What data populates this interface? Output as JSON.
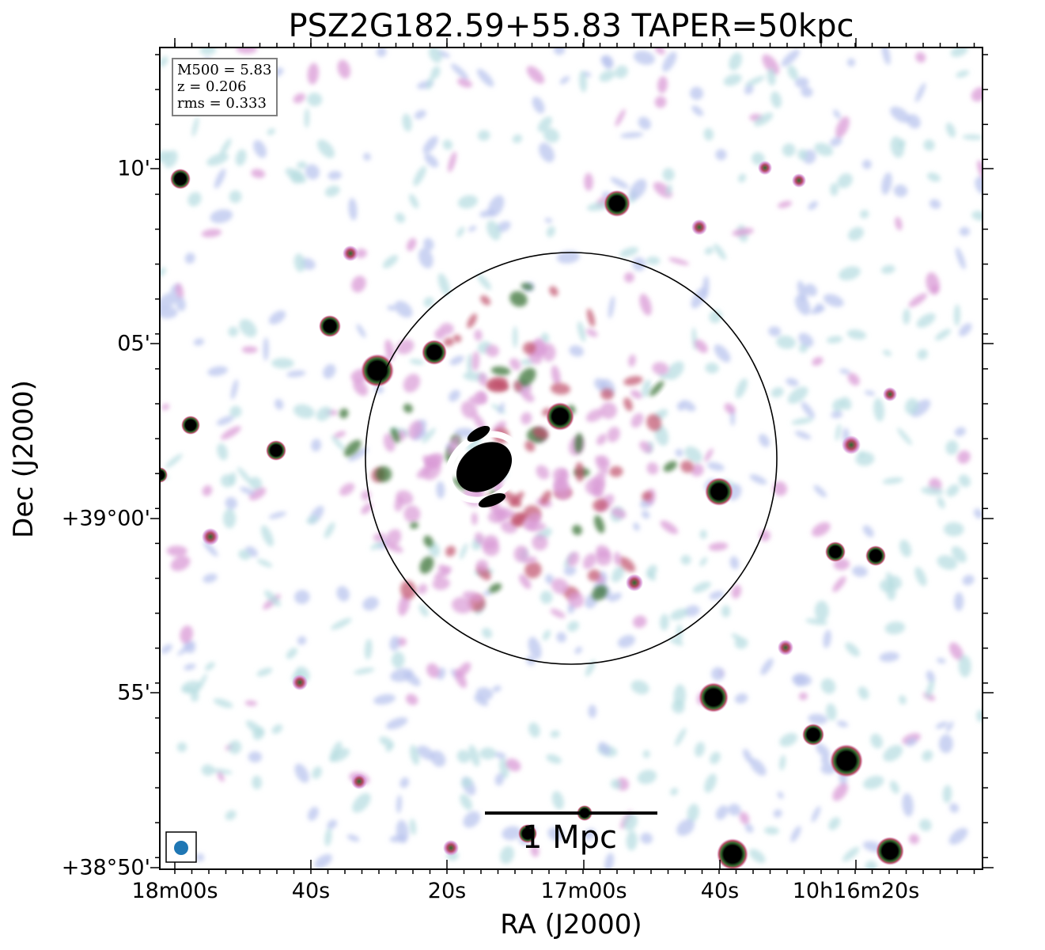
{
  "title": "PSZ2G182.59+55.83 TAPER=50kpc",
  "axes": {
    "xlabel": "RA (J2000)",
    "ylabel": "Dec (J2000)",
    "xticks": [
      "18m00s",
      "40s",
      "20s",
      "17m00s",
      "40s",
      "10h16m20s"
    ],
    "yticks": [
      "10'",
      "05'",
      "+39°00'",
      "55'",
      "+38°50'"
    ]
  },
  "info": {
    "line1": "M500 = 5.83",
    "line2": "z = 0.206",
    "line3": "rms = 0.333"
  },
  "scalebar": {
    "label": "1 Mpc"
  },
  "colors": {
    "background": "#ffffff",
    "noise_light": "#b8dde2",
    "noise_blue": "#b9c4ee",
    "emission_pink": "#d99ad6",
    "emission_red": "#c0506a",
    "emission_green": "#2f6a2c",
    "source_core": "#000000",
    "beam": "#1f77b4"
  }
}
